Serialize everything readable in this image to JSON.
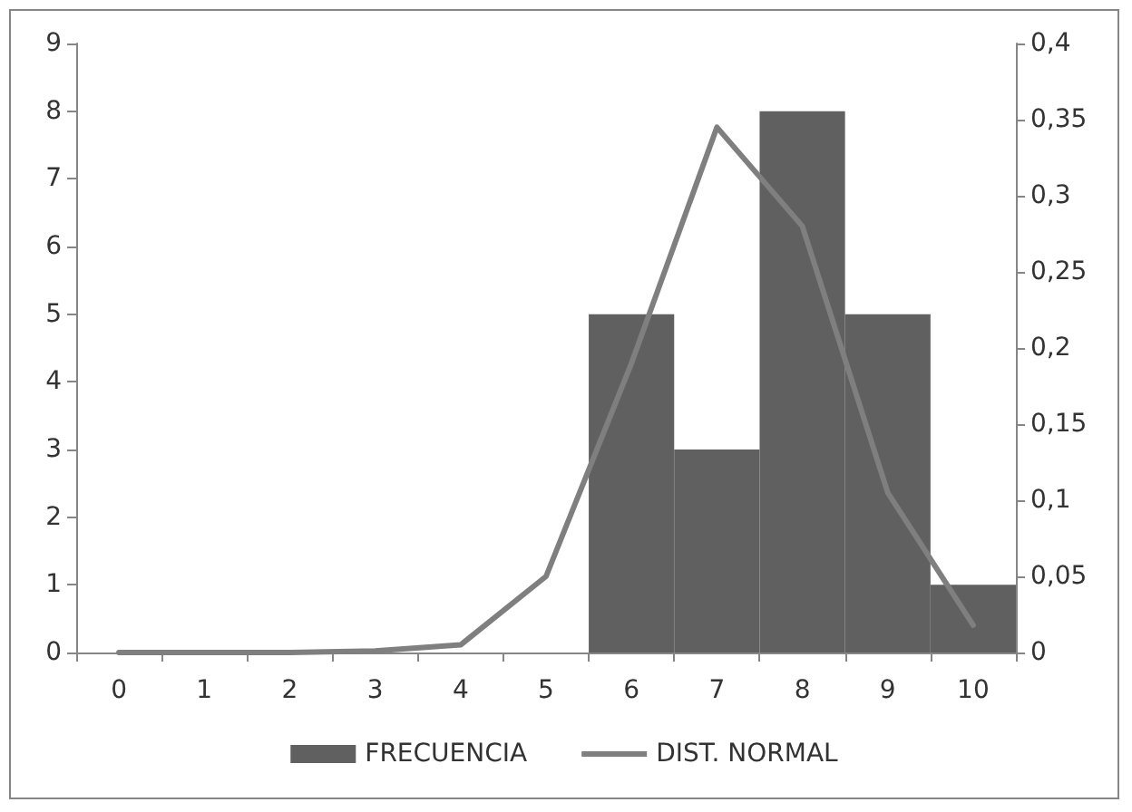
{
  "chart_data": {
    "type": "bar",
    "categories": [
      "0",
      "1",
      "2",
      "3",
      "4",
      "5",
      "6",
      "7",
      "8",
      "9",
      "10"
    ],
    "series": [
      {
        "name": "FRECUENCIA",
        "color": "#606060",
        "values": [
          0,
          0,
          0,
          0,
          0,
          0,
          5,
          3,
          8,
          5,
          1
        ]
      },
      {
        "name": "DIST. NORMAL",
        "type": "line",
        "axis": "y2",
        "color": "#7f7f7f",
        "values": [
          0,
          0,
          0,
          0.001,
          0.005,
          0.05,
          0.19,
          0.345,
          0.28,
          0.105,
          0.018
        ]
      }
    ],
    "ylim": [
      0,
      9
    ],
    "yticks": [
      0,
      1,
      2,
      3,
      4,
      5,
      6,
      7,
      8,
      9
    ],
    "y2lim": [
      0,
      0.4
    ],
    "y2ticks": [
      0,
      {
        "value": 0.05,
        "label": "0,05"
      },
      {
        "value": 0.1,
        "label": "0,1"
      },
      {
        "value": 0.15,
        "label": "0,15"
      },
      {
        "value": 0.2,
        "label": "0,2"
      },
      {
        "value": 0.25,
        "label": "0,25"
      },
      {
        "value": 0.3,
        "label": "0,3"
      },
      {
        "value": 0.35,
        "label": "0,35"
      },
      {
        "value": 0.4,
        "label": "0,4"
      }
    ],
    "grid": false,
    "legend": "bottom",
    "marker": "none",
    "line_style": "solid"
  }
}
